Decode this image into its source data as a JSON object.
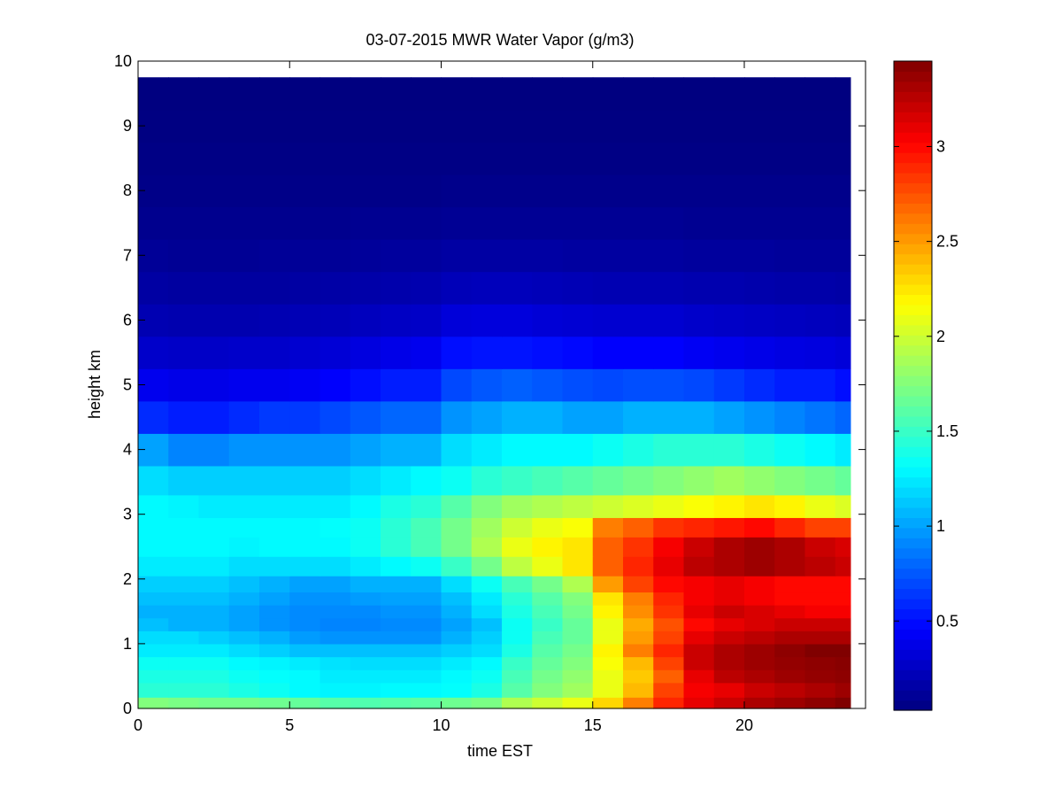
{
  "chart_data": {
    "type": "heatmap",
    "title": "03-07-2015 MWR Water Vapor (g/m3)",
    "xlabel": "time EST",
    "ylabel": "height km",
    "xlim": [
      0,
      24
    ],
    "ylim": [
      0,
      10
    ],
    "xticks": [
      0,
      5,
      10,
      15,
      20
    ],
    "yticks": [
      0,
      1,
      2,
      3,
      4,
      5,
      6,
      7,
      8,
      9,
      10
    ],
    "colorbar": {
      "range": [
        0.03,
        3.45
      ],
      "ticks": [
        0.5,
        1,
        1.5,
        2,
        2.5,
        3
      ],
      "colormap": "jet"
    },
    "grid": false,
    "time_hours": [
      0.5,
      1.5,
      2.5,
      3.5,
      4.5,
      5.5,
      6.5,
      7.5,
      8.5,
      9.5,
      10.5,
      11.5,
      12.5,
      13.5,
      14.5,
      15.5,
      16.5,
      17.5,
      18.5,
      19.5,
      20.5,
      21.5,
      22.5,
      23.5
    ],
    "height_km": [
      0.05,
      0.3,
      0.5,
      0.7,
      0.9,
      1.1,
      1.3,
      1.5,
      1.7,
      1.9,
      2.2,
      2.5,
      2.8,
      3.1,
      3.5,
      4.0,
      4.5,
      5.0,
      5.5,
      6.0,
      6.5,
      7.0,
      7.5,
      8.0,
      8.5,
      9.0,
      9.5
    ],
    "values": [
      [
        1.75,
        1.72,
        1.7,
        1.7,
        1.68,
        1.65,
        1.6,
        1.58,
        1.6,
        1.62,
        1.68,
        1.72,
        1.9,
        2.0,
        2.1,
        2.3,
        2.6,
        2.9,
        3.1,
        3.2,
        3.3,
        3.35,
        3.4,
        3.45
      ],
      [
        1.45,
        1.45,
        1.45,
        1.4,
        1.35,
        1.3,
        1.28,
        1.28,
        1.3,
        1.3,
        1.32,
        1.4,
        1.6,
        1.75,
        1.85,
        2.1,
        2.4,
        2.8,
        3.05,
        3.1,
        3.2,
        3.25,
        3.3,
        3.35
      ],
      [
        1.4,
        1.4,
        1.4,
        1.35,
        1.32,
        1.3,
        1.25,
        1.25,
        1.25,
        1.25,
        1.3,
        1.35,
        1.55,
        1.7,
        1.8,
        2.1,
        2.35,
        2.7,
        3.1,
        3.25,
        3.3,
        3.35,
        3.38,
        3.4
      ],
      [
        1.35,
        1.35,
        1.35,
        1.3,
        1.28,
        1.25,
        1.22,
        1.2,
        1.2,
        1.2,
        1.25,
        1.3,
        1.5,
        1.65,
        1.75,
        2.15,
        2.4,
        2.8,
        3.2,
        3.3,
        3.35,
        3.38,
        3.4,
        3.42
      ],
      [
        1.25,
        1.25,
        1.25,
        1.2,
        1.15,
        1.1,
        1.1,
        1.1,
        1.1,
        1.1,
        1.15,
        1.2,
        1.4,
        1.6,
        1.7,
        2.2,
        2.6,
        2.9,
        3.2,
        3.3,
        3.35,
        3.4,
        3.45,
        3.45
      ],
      [
        1.2,
        1.2,
        1.15,
        1.1,
        1.05,
        0.98,
        0.95,
        0.95,
        0.95,
        0.95,
        1.05,
        1.15,
        1.35,
        1.55,
        1.65,
        2.1,
        2.5,
        2.8,
        3.1,
        3.2,
        3.25,
        3.3,
        3.3,
        3.3
      ],
      [
        1.1,
        1.05,
        1.05,
        1.0,
        0.95,
        0.92,
        0.9,
        0.9,
        0.92,
        0.92,
        1.0,
        1.1,
        1.35,
        1.5,
        1.65,
        2.1,
        2.45,
        2.75,
        3.0,
        3.1,
        3.15,
        3.2,
        3.2,
        3.2
      ],
      [
        1.05,
        1.05,
        1.05,
        1.0,
        0.95,
        0.92,
        0.92,
        0.92,
        0.95,
        0.95,
        1.05,
        1.2,
        1.4,
        1.55,
        1.7,
        2.2,
        2.55,
        2.85,
        3.1,
        3.2,
        3.15,
        3.1,
        3.05,
        3.05
      ],
      [
        1.1,
        1.1,
        1.1,
        1.05,
        1.0,
        0.95,
        0.95,
        0.98,
        1.0,
        1.0,
        1.1,
        1.25,
        1.45,
        1.6,
        1.75,
        2.25,
        2.6,
        2.9,
        3.05,
        3.1,
        3.05,
        3.0,
        3.0,
        3.0
      ],
      [
        1.15,
        1.15,
        1.15,
        1.1,
        1.05,
        1.0,
        1.0,
        1.05,
        1.05,
        1.05,
        1.2,
        1.35,
        1.55,
        1.7,
        1.9,
        2.5,
        2.8,
        3.0,
        3.05,
        3.1,
        3.05,
        3.0,
        3.0,
        3.0
      ],
      [
        1.25,
        1.25,
        1.25,
        1.2,
        1.2,
        1.2,
        1.2,
        1.25,
        1.3,
        1.35,
        1.5,
        1.7,
        1.95,
        2.1,
        2.25,
        2.7,
        2.9,
        3.1,
        3.25,
        3.3,
        3.35,
        3.3,
        3.25,
        3.2
      ],
      [
        1.3,
        1.3,
        1.3,
        1.28,
        1.3,
        1.3,
        1.3,
        1.35,
        1.45,
        1.55,
        1.7,
        1.9,
        2.1,
        2.2,
        2.25,
        2.7,
        2.85,
        3.05,
        3.2,
        3.3,
        3.35,
        3.3,
        3.2,
        3.15
      ],
      [
        1.3,
        1.3,
        1.3,
        1.3,
        1.3,
        1.3,
        1.32,
        1.35,
        1.45,
        1.55,
        1.7,
        1.85,
        2.0,
        2.1,
        2.15,
        2.6,
        2.7,
        2.85,
        2.9,
        2.95,
        3.0,
        2.9,
        2.8,
        2.8
      ],
      [
        1.3,
        1.28,
        1.25,
        1.25,
        1.25,
        1.25,
        1.25,
        1.3,
        1.4,
        1.45,
        1.6,
        1.75,
        1.85,
        1.9,
        1.95,
        2.0,
        2.05,
        2.1,
        2.15,
        2.2,
        2.25,
        2.2,
        2.1,
        2.05
      ],
      [
        1.2,
        1.15,
        1.15,
        1.15,
        1.15,
        1.15,
        1.15,
        1.2,
        1.25,
        1.3,
        1.35,
        1.45,
        1.5,
        1.55,
        1.6,
        1.65,
        1.7,
        1.75,
        1.8,
        1.85,
        1.8,
        1.75,
        1.7,
        1.65
      ],
      [
        1.0,
        0.9,
        0.9,
        0.95,
        0.95,
        0.95,
        0.95,
        1.0,
        1.05,
        1.05,
        1.2,
        1.25,
        1.3,
        1.3,
        1.3,
        1.35,
        1.4,
        1.45,
        1.45,
        1.45,
        1.4,
        1.35,
        1.3,
        1.25
      ],
      [
        0.6,
        0.55,
        0.55,
        0.6,
        0.65,
        0.65,
        0.7,
        0.75,
        0.8,
        0.8,
        0.95,
        1.0,
        1.05,
        1.05,
        1.0,
        1.0,
        1.05,
        1.05,
        1.05,
        1.0,
        0.95,
        0.9,
        0.85,
        0.8
      ],
      [
        0.4,
        0.38,
        0.38,
        0.4,
        0.4,
        0.42,
        0.45,
        0.5,
        0.55,
        0.55,
        0.7,
        0.75,
        0.78,
        0.75,
        0.72,
        0.7,
        0.72,
        0.72,
        0.7,
        0.65,
        0.6,
        0.55,
        0.55,
        0.5
      ],
      [
        0.28,
        0.27,
        0.27,
        0.28,
        0.28,
        0.3,
        0.32,
        0.35,
        0.38,
        0.4,
        0.5,
        0.52,
        0.52,
        0.5,
        0.48,
        0.45,
        0.45,
        0.45,
        0.42,
        0.4,
        0.38,
        0.36,
        0.35,
        0.33
      ],
      [
        0.2,
        0.19,
        0.19,
        0.19,
        0.2,
        0.21,
        0.22,
        0.24,
        0.26,
        0.27,
        0.33,
        0.34,
        0.34,
        0.32,
        0.31,
        0.3,
        0.3,
        0.3,
        0.28,
        0.27,
        0.26,
        0.25,
        0.24,
        0.23
      ],
      [
        0.15,
        0.14,
        0.14,
        0.14,
        0.14,
        0.15,
        0.16,
        0.17,
        0.18,
        0.19,
        0.22,
        0.23,
        0.23,
        0.22,
        0.21,
        0.2,
        0.2,
        0.2,
        0.19,
        0.19,
        0.18,
        0.17,
        0.17,
        0.16
      ],
      [
        0.11,
        0.1,
        0.1,
        0.1,
        0.11,
        0.11,
        0.11,
        0.12,
        0.13,
        0.13,
        0.15,
        0.15,
        0.15,
        0.15,
        0.14,
        0.14,
        0.14,
        0.14,
        0.13,
        0.13,
        0.13,
        0.12,
        0.12,
        0.12
      ],
      [
        0.08,
        0.08,
        0.08,
        0.08,
        0.08,
        0.08,
        0.08,
        0.09,
        0.09,
        0.09,
        0.1,
        0.1,
        0.1,
        0.1,
        0.1,
        0.1,
        0.1,
        0.1,
        0.09,
        0.09,
        0.09,
        0.09,
        0.09,
        0.09
      ],
      [
        0.06,
        0.06,
        0.06,
        0.06,
        0.06,
        0.06,
        0.06,
        0.06,
        0.06,
        0.06,
        0.07,
        0.07,
        0.07,
        0.07,
        0.07,
        0.07,
        0.07,
        0.07,
        0.07,
        0.07,
        0.07,
        0.07,
        0.07,
        0.07
      ],
      [
        0.05,
        0.05,
        0.05,
        0.05,
        0.05,
        0.05,
        0.05,
        0.05,
        0.05,
        0.05,
        0.05,
        0.05,
        0.05,
        0.05,
        0.05,
        0.05,
        0.05,
        0.05,
        0.05,
        0.05,
        0.05,
        0.05,
        0.05,
        0.05
      ],
      [
        0.04,
        0.04,
        0.04,
        0.04,
        0.04,
        0.04,
        0.04,
        0.04,
        0.04,
        0.04,
        0.04,
        0.04,
        0.04,
        0.04,
        0.04,
        0.04,
        0.04,
        0.04,
        0.04,
        0.04,
        0.04,
        0.04,
        0.04,
        0.04
      ],
      [
        0.03,
        0.03,
        0.03,
        0.03,
        0.03,
        0.03,
        0.03,
        0.03,
        0.03,
        0.03,
        0.03,
        0.03,
        0.03,
        0.03,
        0.03,
        0.03,
        0.03,
        0.03,
        0.03,
        0.03,
        0.03,
        0.03,
        0.03,
        0.03
      ]
    ]
  }
}
